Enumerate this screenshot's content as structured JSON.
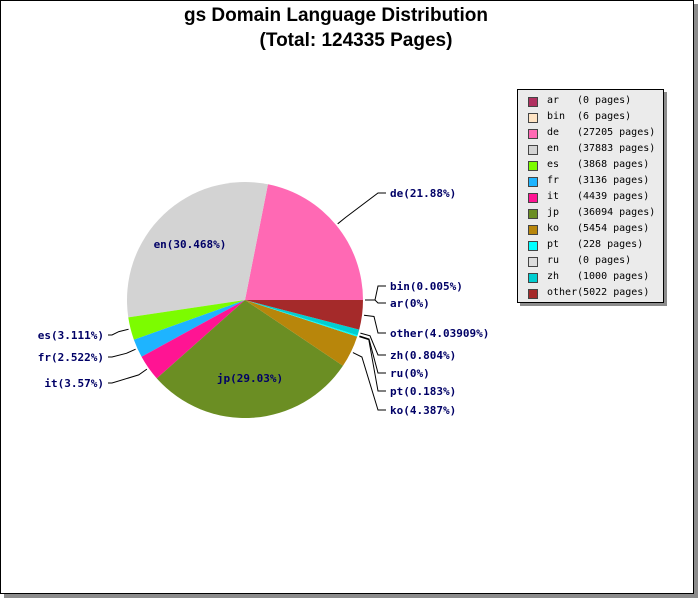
{
  "chart_data": {
    "type": "pie",
    "title": "gs Domain Language Distribution",
    "subtitle": "(Total: 124335 Pages)",
    "slices": [
      {
        "code": "ar",
        "pages": 0,
        "pages_text": "(0 pages)",
        "label": "ar(0%)",
        "color": "#b03060"
      },
      {
        "code": "bin",
        "pages": 6,
        "pages_text": "(6 pages)",
        "label": "bin(0.005%)",
        "color": "#ffe4c4"
      },
      {
        "code": "de",
        "pages": 27205,
        "pages_text": "(27205 pages)",
        "label": "de(21.88%)",
        "color": "#ff69b4"
      },
      {
        "code": "en",
        "pages": 37883,
        "pages_text": "(37883 pages)",
        "label": "en(30.468%)",
        "color": "#d3d3d3"
      },
      {
        "code": "es",
        "pages": 3868,
        "pages_text": "(3868 pages)",
        "label": "es(3.111%)",
        "color": "#7cfc00"
      },
      {
        "code": "fr",
        "pages": 3136,
        "pages_text": "(3136 pages)",
        "label": "fr(2.522%)",
        "color": "#1eb4ff"
      },
      {
        "code": "it",
        "pages": 4439,
        "pages_text": "(4439 pages)",
        "label": "it(3.57%)",
        "color": "#ff1493"
      },
      {
        "code": "jp",
        "pages": 36094,
        "pages_text": "(36094 pages)",
        "label": "jp(29.03%)",
        "color": "#6b8e23"
      },
      {
        "code": "ko",
        "pages": 5454,
        "pages_text": "(5454 pages)",
        "label": "ko(4.387%)",
        "color": "#b8860b"
      },
      {
        "code": "pt",
        "pages": 228,
        "pages_text": "(228 pages)",
        "label": "pt(0.183%)",
        "color": "#00ffff"
      },
      {
        "code": "ru",
        "pages": 0,
        "pages_text": "(0 pages)",
        "label": "ru(0%)",
        "color": "#dcdcdc"
      },
      {
        "code": "zh",
        "pages": 1000,
        "pages_text": "(1000 pages)",
        "label": "zh(0.804%)",
        "color": "#00ced1"
      },
      {
        "code": "other",
        "pages": 5022,
        "pages_text": "(5022 pages)",
        "label": "other(4.03909%)",
        "color": "#a52a2a"
      }
    ],
    "legend_position": "right"
  }
}
